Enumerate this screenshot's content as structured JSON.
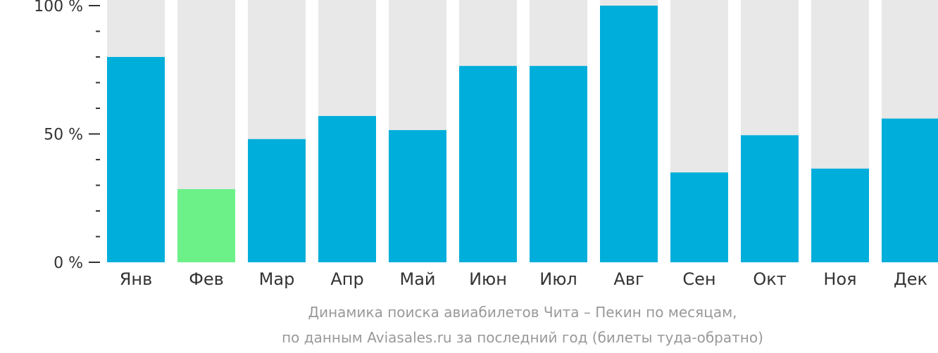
{
  "chart_data": {
    "type": "bar",
    "categories": [
      "Янв",
      "Фев",
      "Мар",
      "Апр",
      "Май",
      "Июн",
      "Июл",
      "Авг",
      "Сен",
      "Окт",
      "Ноя",
      "Дек"
    ],
    "values": [
      80,
      28.5,
      48,
      57,
      51.5,
      76.5,
      76.5,
      100,
      35,
      49.5,
      36.5,
      56
    ],
    "highlight_index": 1,
    "ylim": [
      0,
      100
    ],
    "yticks": [
      {
        "value": 0,
        "label": "0 %"
      },
      {
        "value": 50,
        "label": "50 %"
      },
      {
        "value": 100,
        "label": "100 %"
      }
    ],
    "minor_tick_step": 10,
    "colors": {
      "bar": "#00aedb",
      "highlight": "#6cf088",
      "track": "#e8e8e8"
    }
  },
  "caption": {
    "line1": "Динамика поиска авиабилетов Чита – Пекин по месяцам,",
    "line2": "по данным Aviasales.ru за последний год (билеты туда-обратно)"
  }
}
